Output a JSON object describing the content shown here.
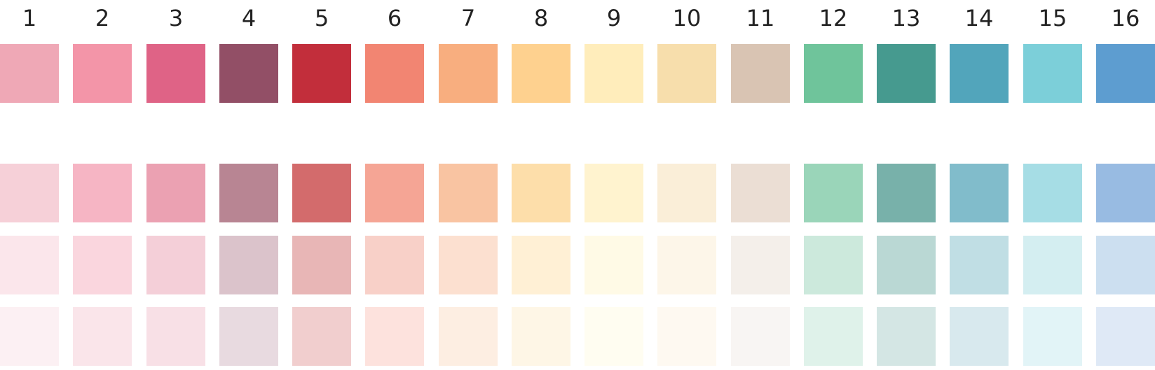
{
  "columns": [
    {
      "label": "1",
      "colors": [
        "#efa8b6",
        "#f6d0d8",
        "#fbe6eb",
        "#fcf0f3"
      ]
    },
    {
      "label": "2",
      "colors": [
        "#f395a8",
        "#f6b5c4",
        "#fad6de",
        "#fae5ea"
      ]
    },
    {
      "label": "3",
      "colors": [
        "#df6386",
        "#eba1b2",
        "#f4cfd8",
        "#f8e0e6"
      ]
    },
    {
      "label": "4",
      "colors": [
        "#924f66",
        "#b88593",
        "#dbc3cb",
        "#e8dae0"
      ]
    },
    {
      "label": "5",
      "colors": [
        "#c22e3b",
        "#d36b6c",
        "#e8b6b6",
        "#f1cece"
      ]
    },
    {
      "label": "6",
      "colors": [
        "#f28572",
        "#f5a595",
        "#f8d0c8",
        "#fde2dd"
      ]
    },
    {
      "label": "7",
      "colors": [
        "#f8ae7f",
        "#f9c4a2",
        "#fce0d0",
        "#fdeee2"
      ]
    },
    {
      "label": "8",
      "colors": [
        "#fed18f",
        "#fddeaa",
        "#fff0d5",
        "#fef6e6"
      ]
    },
    {
      "label": "9",
      "colors": [
        "#ffedbb",
        "#fff3cf",
        "#fffae6",
        "#fffdf1"
      ]
    },
    {
      "label": "10",
      "colors": [
        "#f7deac",
        "#faeed8",
        "#fdf6e9",
        "#fef9f1"
      ]
    },
    {
      "label": "11",
      "colors": [
        "#d9c4b3",
        "#ebded4",
        "#f4efea",
        "#f8f5f3"
      ]
    },
    {
      "label": "12",
      "colors": [
        "#6fc49b",
        "#9ad5b9",
        "#cce9dc",
        "#dff2ea"
      ]
    },
    {
      "label": "13",
      "colors": [
        "#469a8f",
        "#78b1aa",
        "#bad8d4",
        "#d4e6e4"
      ]
    },
    {
      "label": "14",
      "colors": [
        "#52a5bb",
        "#81bccb",
        "#c0dee4",
        "#d8e9ee"
      ]
    },
    {
      "label": "15",
      "colors": [
        "#7ccfd9",
        "#a6dde5",
        "#d4eef1",
        "#e2f4f7"
      ]
    },
    {
      "label": "16",
      "colors": [
        "#5d9dd0",
        "#98bbe2",
        "#ccdff0",
        "#dfe9f6"
      ]
    }
  ]
}
